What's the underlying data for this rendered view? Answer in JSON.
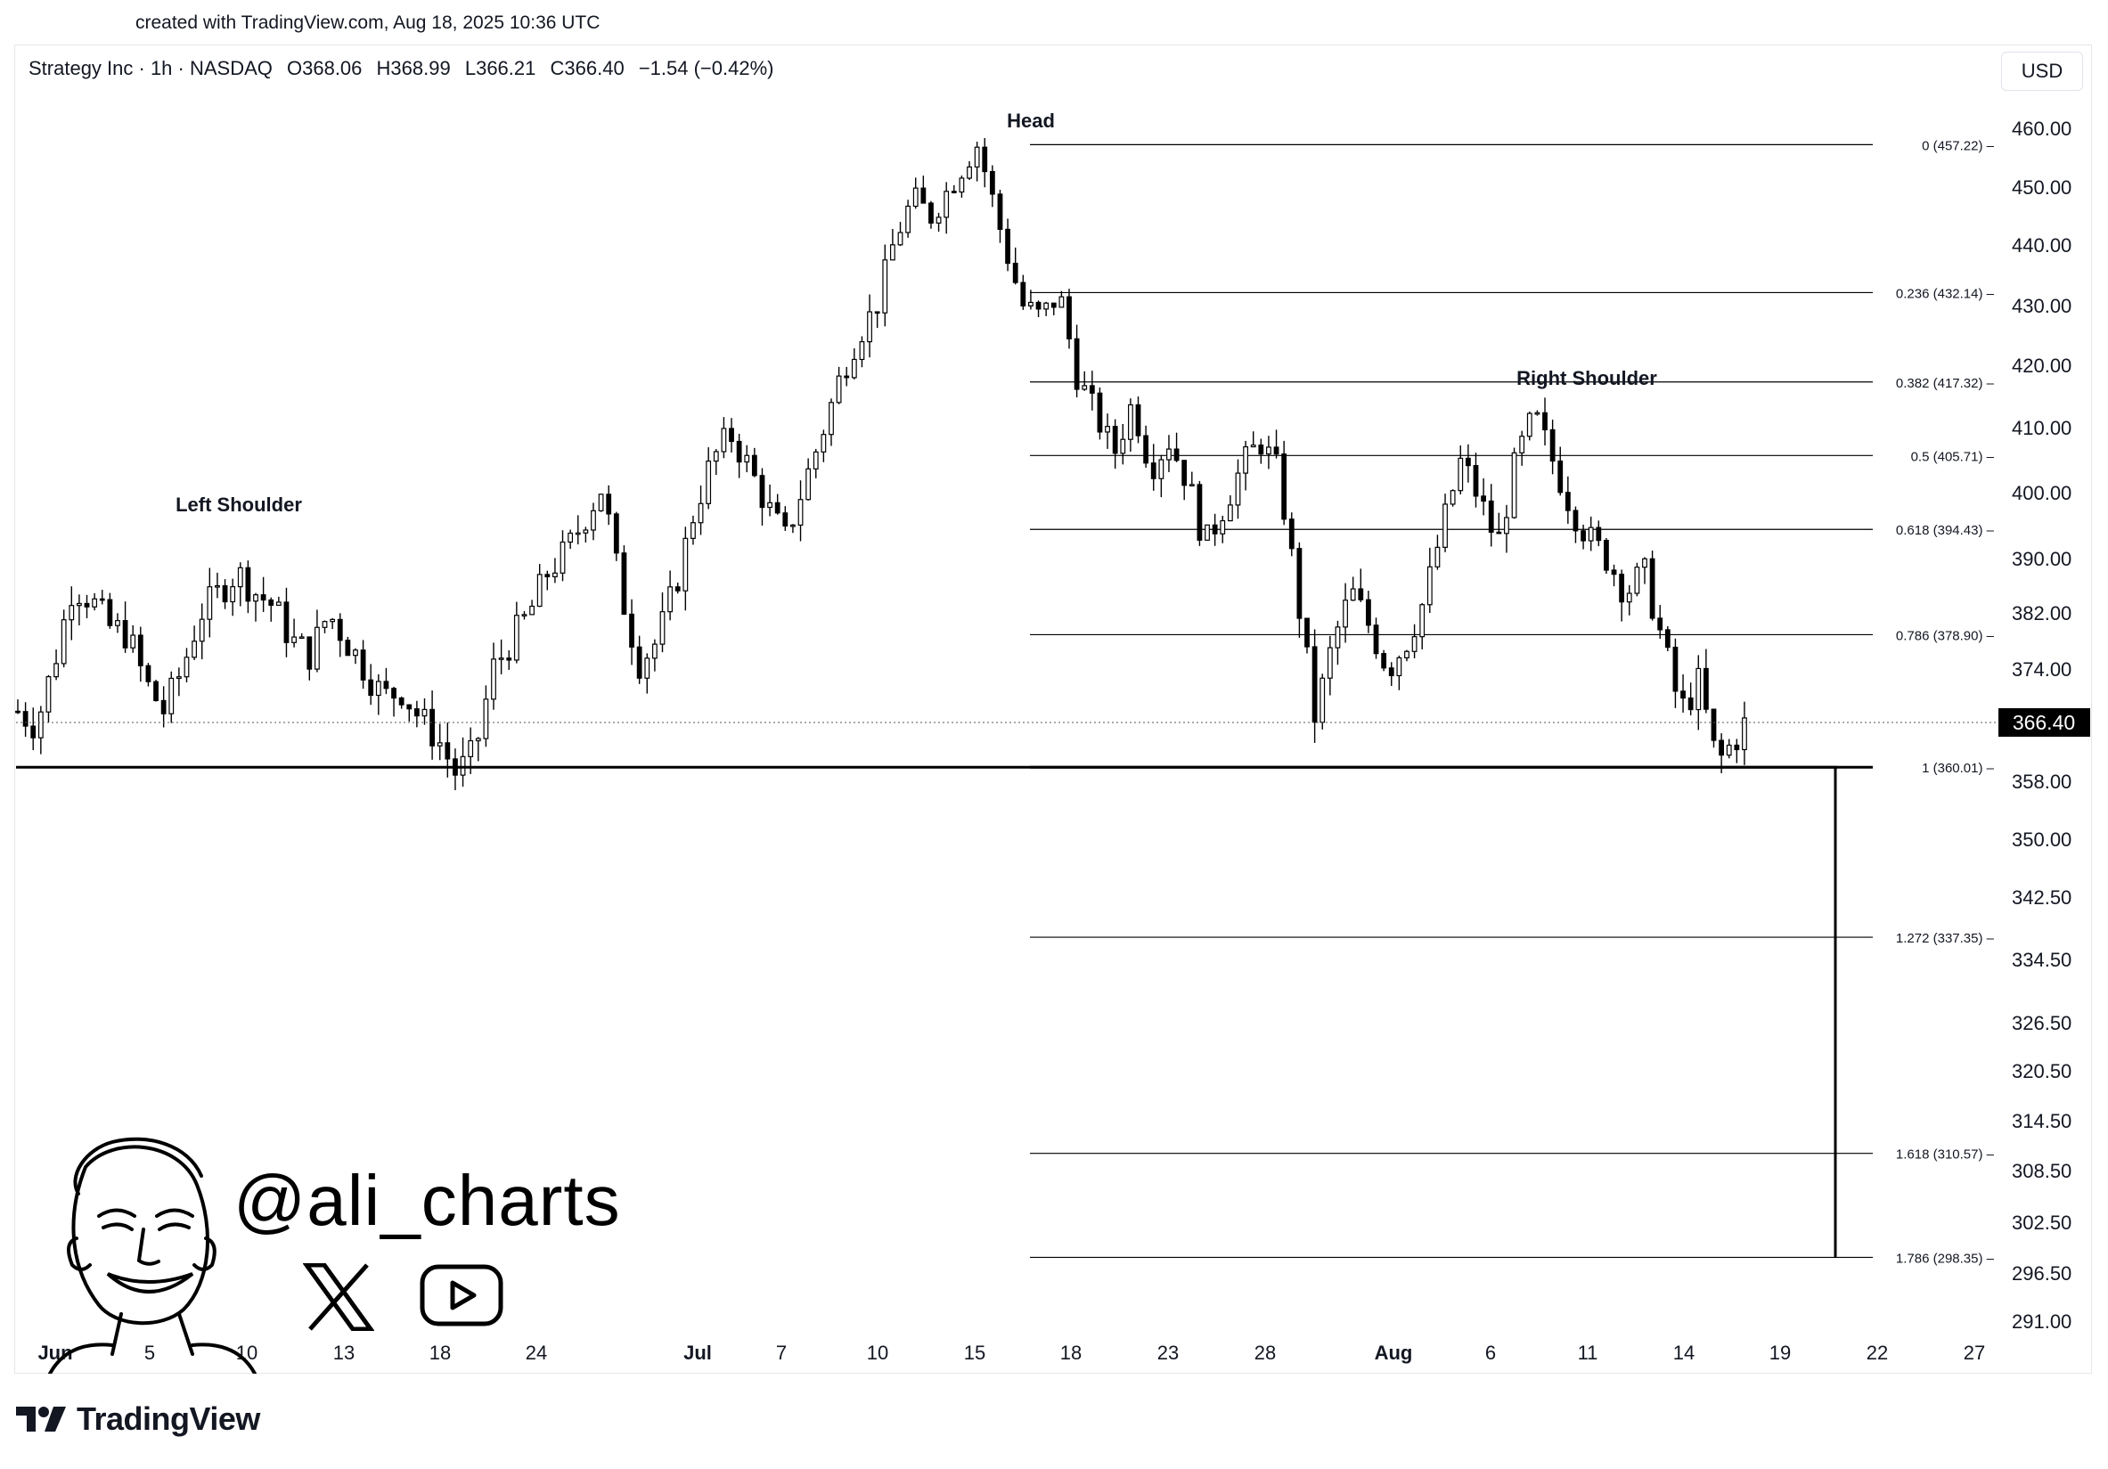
{
  "header": {
    "created": "created with TradingView.com, Aug 18, 2025 10:36 UTC"
  },
  "legend": {
    "symbol": "Strategy Inc · 1h · NASDAQ",
    "open": "O368.06",
    "high": "H368.99",
    "low": "L366.21",
    "close": "C366.40",
    "change": "−1.54 (−0.42%)"
  },
  "currency": "USD",
  "branding": {
    "name": "TradingView",
    "handle": "@ali_charts",
    "x_icon": "x-logo-icon",
    "youtube_icon": "youtube-icon"
  },
  "colors": {
    "candle": "#000000",
    "background": "#ffffff",
    "last_price_bg": "#000000"
  },
  "chart_data": {
    "type": "candlestick",
    "title": "",
    "xlabel": "",
    "ylabel": "",
    "ylim": [
      291.0,
      463.0
    ],
    "grid": false,
    "y_ticks": [
      "460.00",
      "450.00",
      "440.00",
      "430.00",
      "420.00",
      "410.00",
      "400.00",
      "390.00",
      "382.00",
      "374.00",
      "358.00",
      "350.00",
      "342.50",
      "334.50",
      "326.50",
      "320.50",
      "314.50",
      "308.50",
      "302.50",
      "296.50",
      "291.00"
    ],
    "x_ticks": [
      "Jun",
      "5",
      "10",
      "13",
      "18",
      "24",
      "Jul",
      "7",
      "10",
      "15",
      "18",
      "23",
      "28",
      "Aug",
      "6",
      "11",
      "14",
      "19",
      "22",
      "27"
    ],
    "last_price": "366.40",
    "series": [
      {
        "name": "",
        "points": [
          [
            0,
            368
          ],
          [
            10,
            366
          ],
          [
            20,
            375
          ],
          [
            30,
            386
          ],
          [
            40,
            384
          ],
          [
            50,
            380
          ],
          [
            60,
            379
          ],
          [
            70,
            372
          ],
          [
            80,
            368
          ],
          [
            90,
            374
          ],
          [
            100,
            382
          ],
          [
            110,
            385
          ],
          [
            120,
            388
          ],
          [
            130,
            385
          ],
          [
            140,
            383
          ],
          [
            150,
            378
          ],
          [
            160,
            376
          ],
          [
            170,
            382
          ],
          [
            180,
            378
          ],
          [
            190,
            374
          ],
          [
            200,
            370
          ],
          [
            210,
            371
          ],
          [
            220,
            367
          ],
          [
            230,
            364
          ],
          [
            240,
            359
          ],
          [
            250,
            362
          ],
          [
            260,
            374
          ],
          [
            270,
            378
          ],
          [
            280,
            382
          ],
          [
            290,
            388
          ],
          [
            300,
            391
          ],
          [
            310,
            396
          ],
          [
            320,
            401
          ],
          [
            330,
            385
          ],
          [
            340,
            375
          ],
          [
            350,
            378
          ],
          [
            360,
            386
          ],
          [
            370,
            397
          ],
          [
            380,
            405
          ],
          [
            390,
            409
          ],
          [
            400,
            404
          ],
          [
            410,
            398
          ],
          [
            420,
            393
          ],
          [
            430,
            401
          ],
          [
            440,
            409
          ],
          [
            450,
            418
          ],
          [
            460,
            425
          ],
          [
            470,
            430
          ],
          [
            480,
            441
          ],
          [
            490,
            448
          ],
          [
            500,
            445
          ],
          [
            510,
            450
          ],
          [
            520,
            455
          ],
          [
            525,
            457.22
          ],
          [
            530,
            452
          ],
          [
            540,
            440
          ],
          [
            550,
            430
          ],
          [
            560,
            428
          ],
          [
            570,
            432
          ],
          [
            580,
            418
          ],
          [
            590,
            412
          ],
          [
            600,
            406
          ],
          [
            610,
            414
          ],
          [
            620,
            404
          ],
          [
            630,
            408
          ],
          [
            640,
            402
          ],
          [
            650,
            392
          ],
          [
            660,
            398
          ],
          [
            670,
            404
          ],
          [
            680,
            408
          ],
          [
            690,
            403
          ],
          [
            700,
            385
          ],
          [
            710,
            367
          ],
          [
            720,
            378
          ],
          [
            730,
            385
          ],
          [
            740,
            380
          ],
          [
            750,
            374
          ],
          [
            760,
            378
          ],
          [
            770,
            384
          ],
          [
            780,
            395
          ],
          [
            790,
            405
          ],
          [
            800,
            399
          ],
          [
            810,
            392
          ],
          [
            820,
            405
          ],
          [
            830,
            412
          ],
          [
            840,
            405
          ],
          [
            850,
            398
          ],
          [
            860,
            393
          ],
          [
            870,
            390
          ],
          [
            880,
            385
          ],
          [
            890,
            388
          ],
          [
            900,
            378
          ],
          [
            910,
            368
          ],
          [
            920,
            372
          ],
          [
            930,
            360.5
          ],
          [
            940,
            364
          ],
          [
            946,
            366.4
          ]
        ]
      }
    ],
    "fibonacci": [
      {
        "ratio": "0",
        "label": "0 (457.22)",
        "value": 457.22
      },
      {
        "ratio": "0.236",
        "label": "0.236 (432.14)",
        "value": 432.14
      },
      {
        "ratio": "0.382",
        "label": "0.382 (417.32)",
        "value": 417.32
      },
      {
        "ratio": "0.5",
        "label": "0.5 (405.71)",
        "value": 405.71
      },
      {
        "ratio": "0.618",
        "label": "0.618 (394.43)",
        "value": 394.43
      },
      {
        "ratio": "0.786",
        "label": "0.786 (378.90)",
        "value": 378.9
      },
      {
        "ratio": "1",
        "label": "1 (360.01)",
        "value": 360.01
      },
      {
        "ratio": "1.272",
        "label": "1.272 (337.35)",
        "value": 337.35
      },
      {
        "ratio": "1.618",
        "label": "1.618 (310.57)",
        "value": 310.57
      },
      {
        "ratio": "1.786",
        "label": "1.786 (298.35)",
        "value": 298.35
      }
    ],
    "neckline": 360.01,
    "annotations": [
      {
        "text": "Left Shoulder"
      },
      {
        "text": "Head"
      },
      {
        "text": "Right Shoulder"
      }
    ]
  }
}
